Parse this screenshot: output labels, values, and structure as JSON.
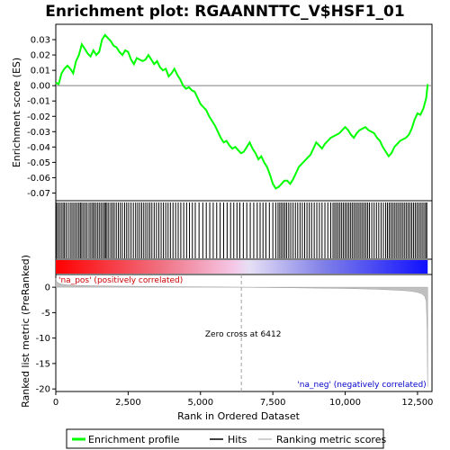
{
  "chart_data": {
    "type": "line",
    "title": "Enrichment plot: RGAANNTTC_V$HSF1_01",
    "top_panel": {
      "ylabel": "Enrichment score (ES)",
      "ylim": [
        -0.075,
        0.04
      ],
      "yticks": [
        0.03,
        0.02,
        0.01,
        0.0,
        -0.01,
        -0.02,
        -0.03,
        -0.04,
        -0.05,
        -0.06,
        -0.07
      ],
      "ytick_labels": [
        "0.03",
        "0.02",
        "0.01",
        "0.00",
        "-0.01",
        "-0.02",
        "-0.03",
        "-0.04",
        "-0.05",
        "-0.06",
        "-0.07"
      ],
      "series": [
        {
          "name": "Enrichment profile",
          "color": "#00ff00",
          "x": [
            0,
            100,
            200,
            300,
            400,
            500,
            600,
            700,
            800,
            900,
            1000,
            1100,
            1200,
            1300,
            1400,
            1500,
            1600,
            1700,
            1800,
            1900,
            2000,
            2100,
            2200,
            2300,
            2400,
            2500,
            2600,
            2700,
            2800,
            2900,
            3000,
            3100,
            3200,
            3300,
            3400,
            3500,
            3600,
            3700,
            3800,
            3900,
            4000,
            4100,
            4200,
            4300,
            4400,
            4500,
            4600,
            4700,
            4800,
            4900,
            5000,
            5100,
            5200,
            5300,
            5400,
            5500,
            5600,
            5700,
            5800,
            5900,
            6000,
            6100,
            6200,
            6300,
            6400,
            6500,
            6600,
            6700,
            6800,
            6900,
            7000,
            7100,
            7200,
            7300,
            7400,
            7500,
            7600,
            7700,
            7800,
            7900,
            8000,
            8100,
            8200,
            8300,
            8400,
            8500,
            8600,
            8700,
            8800,
            8900,
            9000,
            9100,
            9200,
            9300,
            9400,
            9500,
            9600,
            9700,
            9800,
            9900,
            10000,
            10100,
            10200,
            10300,
            10400,
            10500,
            10600,
            10700,
            10800,
            10900,
            11000,
            11100,
            11200,
            11300,
            11400,
            11500,
            11600,
            11700,
            11800,
            11900,
            12000,
            12100,
            12200,
            12300,
            12400,
            12500,
            12600,
            12700,
            12800,
            12850
          ],
          "y": [
            0.002,
            0.001,
            0.008,
            0.011,
            0.013,
            0.011,
            0.008,
            0.016,
            0.02,
            0.027,
            0.024,
            0.021,
            0.019,
            0.023,
            0.02,
            0.022,
            0.03,
            0.033,
            0.031,
            0.029,
            0.026,
            0.025,
            0.022,
            0.02,
            0.023,
            0.022,
            0.017,
            0.014,
            0.018,
            0.017,
            0.016,
            0.017,
            0.02,
            0.017,
            0.014,
            0.016,
            0.012,
            0.01,
            0.011,
            0.006,
            0.008,
            0.011,
            0.007,
            0.004,
            0.0,
            -0.002,
            -0.001,
            -0.003,
            -0.004,
            -0.008,
            -0.012,
            -0.014,
            -0.016,
            -0.02,
            -0.023,
            -0.026,
            -0.03,
            -0.034,
            -0.037,
            -0.036,
            -0.039,
            -0.041,
            -0.04,
            -0.042,
            -0.044,
            -0.043,
            -0.04,
            -0.037,
            -0.041,
            -0.044,
            -0.048,
            -0.046,
            -0.05,
            -0.053,
            -0.058,
            -0.064,
            -0.067,
            -0.066,
            -0.064,
            -0.062,
            -0.062,
            -0.064,
            -0.061,
            -0.057,
            -0.053,
            -0.051,
            -0.049,
            -0.047,
            -0.045,
            -0.041,
            -0.037,
            -0.039,
            -0.041,
            -0.038,
            -0.036,
            -0.034,
            -0.033,
            -0.032,
            -0.031,
            -0.029,
            -0.027,
            -0.029,
            -0.032,
            -0.034,
            -0.031,
            -0.029,
            -0.028,
            -0.027,
            -0.029,
            -0.03,
            -0.031,
            -0.034,
            -0.036,
            -0.04,
            -0.043,
            -0.046,
            -0.044,
            -0.04,
            -0.038,
            -0.036,
            -0.035,
            -0.034,
            -0.032,
            -0.028,
            -0.022,
            -0.018,
            -0.019,
            -0.015,
            -0.008,
            0.001
          ]
        }
      ]
    },
    "hits_panel": {
      "legend_label": "Hits",
      "color": "#000000",
      "hit_ranks": [
        20,
        70,
        130,
        190,
        250,
        300,
        360,
        430,
        500,
        560,
        620,
        680,
        740,
        800,
        850,
        900,
        960,
        1020,
        1080,
        1150,
        1210,
        1270,
        1320,
        1380,
        1440,
        1500,
        1560,
        1620,
        1680,
        1720,
        1770,
        1830,
        1900,
        1960,
        2020,
        2090,
        2160,
        2230,
        2300,
        2380,
        2450,
        2520,
        2600,
        2680,
        2760,
        2830,
        2900,
        2970,
        3040,
        3110,
        3180,
        3250,
        3320,
        3400,
        3480,
        3560,
        3640,
        3720,
        3800,
        3880,
        3960,
        4050,
        4140,
        4230,
        4320,
        4420,
        4520,
        4620,
        4720,
        4820,
        4950,
        5080,
        5200,
        5320,
        5440,
        5560,
        5680,
        5800,
        5920,
        6040,
        6150,
        6260,
        6360,
        6480,
        6600,
        6720,
        6840,
        6960,
        7060,
        7160,
        7260,
        7380,
        7500,
        7600,
        7680,
        7740,
        7800,
        7860,
        7920,
        7980,
        8050,
        8120,
        8200,
        8280,
        8360,
        8440,
        8520,
        8600,
        8680,
        8760,
        8840,
        8930,
        9020,
        9110,
        9200,
        9300,
        9400,
        9500,
        9580,
        9640,
        9700,
        9760,
        9820,
        9880,
        9940,
        10000,
        10060,
        10120,
        10180,
        10240,
        10300,
        10360,
        10420,
        10480,
        10540,
        10600,
        10660,
        10720,
        10780,
        10840,
        10920,
        11000,
        11080,
        11160,
        11240,
        11320,
        11400,
        11460,
        11520,
        11580,
        11640,
        11700,
        11760,
        11820,
        11880,
        11940,
        12000,
        12060,
        12120,
        12180,
        12240,
        12300,
        12360,
        12420,
        12480,
        12540,
        12600,
        12660,
        12720,
        12780,
        12820
      ]
    },
    "bottom_panel": {
      "ylabel": "Ranked list metric (PreRanked)",
      "xlabel": "Rank in Ordered Dataset",
      "ylim": [
        -20.5,
        2.5
      ],
      "yticks": [
        0,
        -5,
        -10,
        -15,
        -20
      ],
      "ytick_labels": [
        "0",
        "-5",
        "-10",
        "-15",
        "-20"
      ],
      "xlim": [
        0,
        13000
      ],
      "xticks": [
        0,
        2500,
        5000,
        7500,
        10000,
        12500
      ],
      "xtick_labels": [
        "0",
        "2,500",
        "5,000",
        "7,500",
        "10,000",
        "12,500"
      ],
      "series": [
        {
          "name": "Ranking metric scores",
          "color": "#c0c0c0",
          "x": [
            0,
            30,
            100,
            200,
            400,
            700,
            1000,
            2000,
            3000,
            4000,
            5000,
            6000,
            6412,
            7000,
            8000,
            9000,
            10000,
            11000,
            11500,
            12000,
            12300,
            12500,
            12650,
            12750,
            12800,
            12830,
            12850
          ],
          "y": [
            1.8,
            1.1,
            0.8,
            0.6,
            0.45,
            0.35,
            0.3,
            0.22,
            0.16,
            0.12,
            0.07,
            0.03,
            0.0,
            -0.05,
            -0.1,
            -0.17,
            -0.25,
            -0.38,
            -0.5,
            -0.65,
            -0.8,
            -1.0,
            -1.3,
            -1.8,
            -2.8,
            -8.0,
            -19.6
          ]
        }
      ],
      "zero_cross": {
        "rank": 6412,
        "label": "Zero cross at 6412"
      },
      "pos_label": "'na_pos' (positively correlated)",
      "neg_label": "'na_neg' (negatively correlated)",
      "pos_color": "#cc0000",
      "neg_color": "#0000cc"
    },
    "x_max_rank": 12850,
    "legend": {
      "items": [
        {
          "label": "Enrichment profile",
          "color": "#00ff00"
        },
        {
          "label": "Hits",
          "color": "#000000"
        },
        {
          "label": "Ranking metric scores",
          "color": "#c0c0c0"
        }
      ],
      "placement": "bottom"
    }
  }
}
